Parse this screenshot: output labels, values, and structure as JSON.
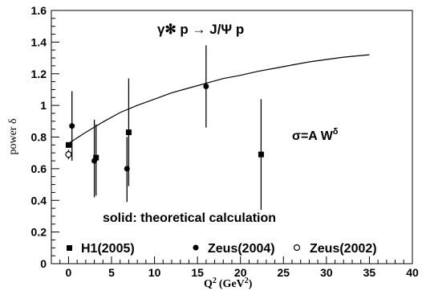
{
  "chart_data": {
    "type": "scatter",
    "title": "",
    "xlabel": "Q",
    "xlabel_sup": "2",
    "xlabel_unit": "(GeV",
    "xlabel_unit_sup": "2",
    "xlabel_unit_close": ")",
    "ylabel": "power δ",
    "xlim": [
      -2,
      40
    ],
    "ylim": [
      0,
      1.6
    ],
    "x_ticks": [
      0,
      5,
      10,
      15,
      20,
      25,
      30,
      35,
      40
    ],
    "y_ticks": [
      0,
      0.2,
      0.4,
      0.6,
      0.8,
      1.0,
      1.2,
      1.4,
      1.6
    ],
    "x_tick_labels": [
      "0",
      "5",
      "10",
      "15",
      "20",
      "25",
      "30",
      "35",
      "40"
    ],
    "y_tick_labels": [
      "0",
      "0.2",
      "0.4",
      "0.6",
      "0.8",
      "1",
      "1.2",
      "1.4",
      "1.6"
    ],
    "series": [
      {
        "name": "H1(2005)",
        "marker": "square-filled",
        "points": [
          {
            "x": 0.0,
            "y": 0.75,
            "ylo": 0.75,
            "yhi": 0.75
          },
          {
            "x": 3.2,
            "y": 0.67,
            "ylo": 0.43,
            "yhi": 0.88
          },
          {
            "x": 7.0,
            "y": 0.83,
            "ylo": 0.49,
            "yhi": 1.17
          },
          {
            "x": 22.4,
            "y": 0.69,
            "ylo": 0.34,
            "yhi": 1.04
          }
        ]
      },
      {
        "name": "Zeus(2004)",
        "marker": "circle-filled",
        "points": [
          {
            "x": 0.4,
            "y": 0.87,
            "ylo": 0.65,
            "yhi": 1.09
          },
          {
            "x": 3.0,
            "y": 0.65,
            "ylo": 0.42,
            "yhi": 0.91
          },
          {
            "x": 6.8,
            "y": 0.6,
            "ylo": 0.39,
            "yhi": 0.8
          },
          {
            "x": 16.0,
            "y": 1.12,
            "ylo": 0.86,
            "yhi": 1.38
          }
        ]
      },
      {
        "name": "Zeus(2002)",
        "marker": "circle-open",
        "points": [
          {
            "x": 0.0,
            "y": 0.69,
            "ylo": 0.66,
            "yhi": 0.72
          }
        ]
      },
      {
        "name": "theoretical calculation",
        "marker": "line",
        "curve": {
          "x": [
            0,
            2,
            4,
            6,
            8,
            10,
            12,
            14,
            16,
            18,
            20,
            22,
            24,
            26,
            28,
            30,
            32,
            35
          ],
          "y": [
            0.76,
            0.83,
            0.895,
            0.955,
            1.0,
            1.04,
            1.08,
            1.11,
            1.14,
            1.17,
            1.19,
            1.215,
            1.235,
            1.255,
            1.275,
            1.29,
            1.305,
            1.32
          ]
        }
      }
    ],
    "annotations": {
      "reaction": "γ✻ p → J/Ψ p",
      "formula": "σ=A W",
      "formula_sup": "δ",
      "theory_note": "solid: theoretical calculation"
    },
    "legend": {
      "placement": "bottom",
      "items": [
        "H1(2005)",
        "Zeus(2004)",
        "Zeus(2002)"
      ]
    },
    "grid": false
  }
}
